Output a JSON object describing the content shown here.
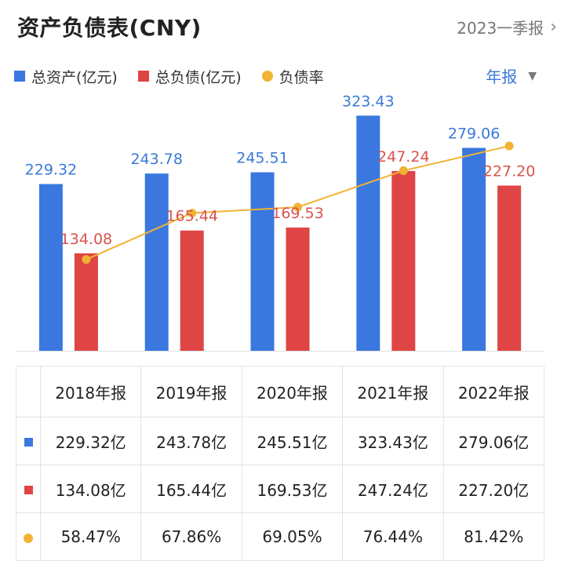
{
  "header": {
    "title": "资产负债表(CNY)",
    "period": "2023一季报"
  },
  "legend": [
    {
      "label": "总资产(亿元)",
      "color": "#3a78e0",
      "shape": "square"
    },
    {
      "label": "总负债(亿元)",
      "color": "#df4545",
      "shape": "square"
    },
    {
      "label": "负债率",
      "color": "#f2b233",
      "shape": "circle"
    }
  ],
  "period_select": {
    "label": "年报"
  },
  "chart_data": {
    "type": "bar",
    "categories": [
      "2018年报",
      "2019年报",
      "2020年报",
      "2021年报",
      "2022年报"
    ],
    "series": [
      {
        "name": "总资产(亿元)",
        "type": "bar",
        "color": "#3a78e0",
        "values": [
          229.32,
          243.78,
          245.51,
          323.43,
          279.06
        ],
        "labels": [
          "229.32",
          "243.78",
          "245.51",
          "323.43",
          "279.06"
        ]
      },
      {
        "name": "总负债(亿元)",
        "type": "bar",
        "color": "#df4545",
        "values": [
          134.08,
          165.44,
          169.53,
          247.24,
          227.2
        ],
        "labels": [
          "134.08",
          "165.44",
          "169.53",
          "247.24",
          "227.20"
        ]
      },
      {
        "name": "负债率",
        "type": "line",
        "color": "#f2b233",
        "values": [
          58.47,
          67.86,
          69.05,
          76.44,
          81.42
        ]
      }
    ],
    "ylim": [
      0,
      340
    ],
    "ylim_ratio": [
      40,
      90
    ],
    "legend_position": "top-left",
    "grid": false
  },
  "table": {
    "columns": [
      "2018年报",
      "2019年报",
      "2020年报",
      "2021年报",
      "2022年报"
    ],
    "rows": [
      {
        "marker": "square",
        "color": "#3a78e0",
        "values": [
          "229.32亿",
          "243.78亿",
          "245.51亿",
          "323.43亿",
          "279.06亿"
        ]
      },
      {
        "marker": "square",
        "color": "#df4545",
        "values": [
          "134.08亿",
          "165.44亿",
          "169.53亿",
          "247.24亿",
          "227.20亿"
        ]
      },
      {
        "marker": "circle",
        "color": "#f2b233",
        "values": [
          "58.47%",
          "67.86%",
          "69.05%",
          "76.44%",
          "81.42%"
        ]
      }
    ]
  }
}
